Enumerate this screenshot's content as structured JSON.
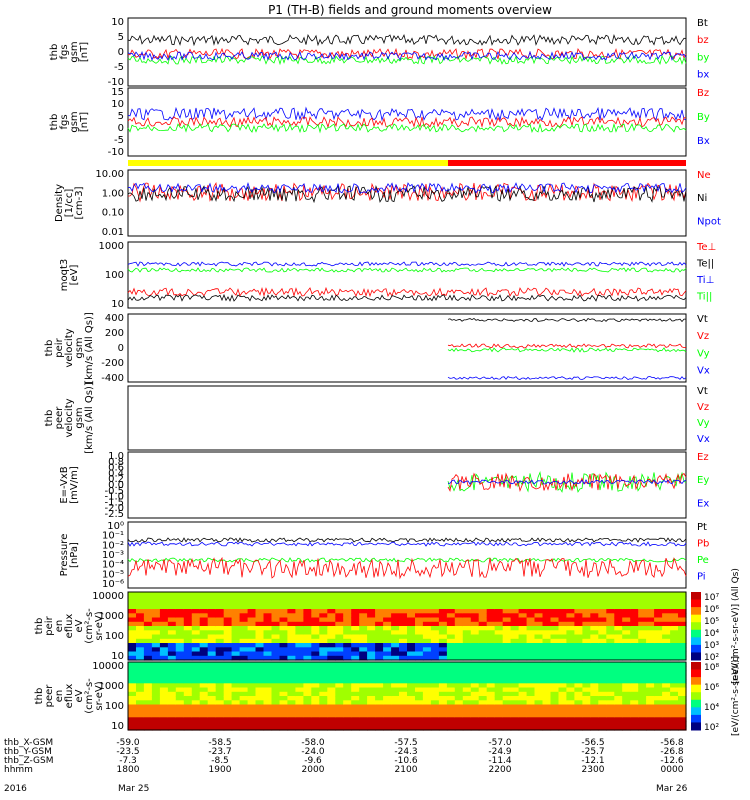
{
  "title": "P1 (TH-B) fields and ground moments overview",
  "colors": {
    "black": "#000000",
    "red": "#ff0000",
    "green": "#00ff00",
    "blue": "#0000ff",
    "yellow": "#ffff00"
  },
  "chart_data": [
    {
      "type": "line",
      "ylabel": [
        "thb",
        "fgs",
        "gsm",
        "[nT]"
      ],
      "yticks": [
        "10",
        "5",
        "0",
        "-5",
        "-10"
      ],
      "ylim": [
        -10,
        10
      ],
      "series": [
        {
          "name": "Bt",
          "color": "black",
          "level": 4
        },
        {
          "name": "bz",
          "color": "red",
          "level": 0
        },
        {
          "name": "by",
          "color": "green",
          "level": -1
        },
        {
          "name": "bx",
          "color": "blue",
          "level": 1
        }
      ]
    },
    {
      "type": "line",
      "ylabel": [
        "thb",
        "fgs",
        "gsm",
        "[nT]"
      ],
      "yticks": [
        "15",
        "10",
        "5",
        "0",
        "-5",
        "-10"
      ],
      "ylim": [
        -13,
        15
      ],
      "series": [
        {
          "name": "Bz",
          "color": "red",
          "level": 0
        },
        {
          "name": "By",
          "color": "green",
          "level": -1
        },
        {
          "name": "Bx",
          "color": "blue",
          "level": 5
        }
      ]
    },
    {
      "type": "line",
      "ylabel": [
        "Density",
        "[1/cc]",
        "[cm-3]"
      ],
      "yticks": [
        "10.00",
        "1.00",
        "0.10",
        "0.01"
      ],
      "log": true,
      "series": [
        {
          "name": "Ne",
          "color": "red"
        },
        {
          "name": "Ni",
          "color": "black"
        },
        {
          "name": "Npot",
          "color": "blue"
        }
      ]
    },
    {
      "type": "line",
      "ylabel": [
        "moqt3",
        "[eV]"
      ],
      "yticks": [
        "1000",
        "100",
        "10"
      ],
      "log": true,
      "series": [
        {
          "name": "Te⊥",
          "color": "red"
        },
        {
          "name": "Te||",
          "color": "black"
        },
        {
          "name": "Ti⊥",
          "color": "blue"
        },
        {
          "name": "Ti||",
          "color": "green"
        }
      ]
    },
    {
      "type": "line",
      "ylabel": [
        "thb",
        "peir",
        "velocity",
        "gsm",
        "[km/s (All Qs)]"
      ],
      "yticks": [
        "400",
        "200",
        "0",
        "-200",
        "-400"
      ],
      "ylim": [
        -420,
        420
      ],
      "series": [
        {
          "name": "Vt",
          "color": "black",
          "level": 380
        },
        {
          "name": "Vz",
          "color": "red",
          "level": 20
        },
        {
          "name": "Vy",
          "color": "green",
          "level": -10
        },
        {
          "name": "Vx",
          "color": "blue",
          "level": -370
        }
      ]
    },
    {
      "type": "line",
      "ylabel": [
        "thb",
        "peer",
        "velocity",
        "gsm",
        "[km/s (All Qs)]"
      ],
      "yticks": [],
      "series": [
        {
          "name": "Vt",
          "color": "black"
        },
        {
          "name": "Vz",
          "color": "red"
        },
        {
          "name": "Vy",
          "color": "green"
        },
        {
          "name": "Vx",
          "color": "blue"
        }
      ]
    },
    {
      "type": "line",
      "ylabel": [
        "E=-VxB",
        "[mV/m]"
      ],
      "yticks": [
        "1.0",
        "0.8",
        "0.6",
        "0.4",
        "0.2",
        "0.0",
        "-0.5",
        "-1.0",
        "-1.5",
        "-2.0",
        "-2.5"
      ],
      "ylim": [
        -2.5,
        1.0
      ],
      "series": [
        {
          "name": "Ez",
          "color": "red"
        },
        {
          "name": "Ey",
          "color": "green"
        },
        {
          "name": "Ex",
          "color": "blue"
        }
      ]
    },
    {
      "type": "line",
      "ylabel": [
        "Pressure",
        "[nPa]"
      ],
      "yticks": [
        "10⁰",
        "10⁻¹",
        "10⁻²",
        "10⁻³",
        "10⁻⁴",
        "10⁻⁵",
        "10⁻⁶"
      ],
      "log": true,
      "series": [
        {
          "name": "Pt",
          "color": "black"
        },
        {
          "name": "Pb",
          "color": "red"
        },
        {
          "name": "Pe",
          "color": "green"
        },
        {
          "name": "Pi",
          "color": "blue"
        }
      ]
    },
    {
      "type": "heatmap",
      "ylabel": [
        "thb",
        "peir",
        "en",
        "eflux",
        "eV",
        "(cm²-s-",
        "sr-eV)"
      ],
      "yticks": [
        "10000",
        "1000",
        "100",
        "10"
      ],
      "colorbar": {
        "label": "[eV/(cm²-s-sr-eV)] (All Qs)",
        "ticks": [
          "10⁷",
          "10⁶",
          "10⁵",
          "10⁴",
          "10³",
          "10²"
        ]
      }
    },
    {
      "type": "heatmap",
      "ylabel": [
        "thb",
        "peer",
        "en",
        "eflux",
        "eV",
        "(cm²-s-",
        "sr-eV)"
      ],
      "yticks": [
        "10000",
        "1000",
        "100",
        "10"
      ],
      "colorbar": {
        "label": "[eV/(cm²-s-sr-eV)]",
        "ticks": [
          "10⁸",
          "10⁶",
          "10⁴",
          "10²"
        ]
      }
    }
  ],
  "xaxis": {
    "rows": [
      {
        "label": "thb_X-GSM",
        "values": [
          "-59.0",
          "-58.5",
          "-58.0",
          "-57.5",
          "-57.0",
          "-56.5",
          "-56.8"
        ]
      },
      {
        "label": "thb_Y-GSM",
        "values": [
          "-23.5",
          "-23.7",
          "-24.0",
          "-24.3",
          "-24.9",
          "-25.7",
          "-26.8"
        ]
      },
      {
        "label": "thb_Z-GSM",
        "values": [
          "-7.3",
          "-8.5",
          "-9.6",
          "-10.6",
          "-11.4",
          "-12.1",
          "-12.6"
        ]
      },
      {
        "label": "hhmm",
        "values": [
          "1800",
          "1900",
          "2000",
          "2100",
          "2200",
          "2300",
          "0000"
        ]
      }
    ],
    "year": "2016",
    "date_start": "Mar 25",
    "date_end": "Mar 26"
  }
}
